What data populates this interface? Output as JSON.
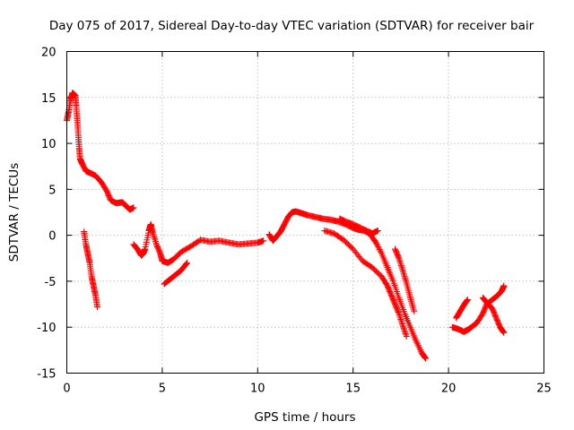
{
  "chart_data": {
    "type": "scatter",
    "title": "Day 075 of 2017, Sidereal Day-to-day VTEC variation (SDTVAR) for receiver bair",
    "xlabel": "GPS time / hours",
    "ylabel": "SDTVAR / TECUs",
    "xlim": [
      0,
      25
    ],
    "ylim": [
      -15,
      20
    ],
    "xticks": [
      0,
      5,
      10,
      15,
      20,
      25
    ],
    "yticks": [
      -15,
      -10,
      -5,
      0,
      5,
      10,
      15,
      20
    ],
    "xtick_labels": [
      "0",
      "5",
      "10",
      "15",
      "20",
      "25"
    ],
    "ytick_labels": [
      "-15",
      "-10",
      "-5",
      "0",
      "5",
      "10",
      "15",
      "20"
    ],
    "grid": true,
    "legend": "none",
    "marker": "+",
    "color": "#ff0000",
    "series": [
      {
        "x": [
          0.0,
          0.1,
          0.2,
          0.3,
          0.45,
          0.5,
          0.55,
          0.6,
          0.65,
          0.7,
          0.8,
          1.0,
          1.2,
          1.5,
          1.8,
          2.1,
          2.3,
          2.6,
          2.9,
          3.1,
          3.3,
          3.5
        ],
        "y": [
          12.5,
          13.5,
          14.8,
          15.5,
          15.2,
          14.0,
          12.5,
          11.0,
          9.5,
          8.3,
          7.8,
          7.0,
          6.8,
          6.5,
          5.8,
          4.8,
          3.8,
          3.5,
          3.6,
          3.2,
          2.8,
          3.0
        ]
      },
      {
        "x": [
          0.9,
          1.0,
          1.1,
          1.2,
          1.3,
          1.4,
          1.5,
          1.6
        ],
        "y": [
          0.4,
          -1.0,
          -2.0,
          -3.0,
          -4.5,
          -5.5,
          -6.5,
          -7.8
        ]
      },
      {
        "x": [
          3.5,
          3.7,
          3.9,
          4.0,
          4.1,
          4.3,
          4.4,
          4.5,
          4.7,
          4.9,
          5.0,
          5.3,
          5.6,
          6.0,
          6.5,
          7.0,
          7.5,
          8.0,
          8.5,
          9.0,
          9.5,
          10.0,
          10.3
        ],
        "y": [
          -1.0,
          -1.5,
          -2.2,
          -2.0,
          -1.5,
          0.5,
          1.2,
          0.3,
          -1.0,
          -2.0,
          -2.8,
          -3.0,
          -2.6,
          -1.8,
          -1.2,
          -0.5,
          -0.7,
          -0.6,
          -0.8,
          -1.0,
          -0.9,
          -0.8,
          -0.6
        ]
      },
      {
        "x": [
          5.1,
          5.4,
          5.7,
          6.0,
          6.3
        ],
        "y": [
          -5.3,
          -4.8,
          -4.3,
          -3.8,
          -3.0
        ]
      },
      {
        "x": [
          10.6,
          10.8,
          11.0,
          11.2,
          11.4,
          11.6,
          11.8,
          12.0,
          12.3,
          12.6,
          13.0,
          13.4,
          13.8,
          14.2,
          14.6,
          15.0,
          15.3,
          15.6,
          15.9,
          16.2,
          16.5,
          16.8,
          17.1,
          17.4,
          17.7,
          18.0,
          18.3,
          18.6,
          18.8
        ],
        "y": [
          0.1,
          -0.6,
          -0.1,
          0.4,
          1.2,
          2.0,
          2.5,
          2.6,
          2.4,
          2.2,
          2.0,
          1.8,
          1.7,
          1.5,
          1.2,
          0.8,
          0.6,
          0.5,
          0.1,
          -0.8,
          -2.0,
          -3.5,
          -5.0,
          -6.8,
          -8.5,
          -10.0,
          -11.5,
          -12.8,
          -13.4
        ]
      },
      {
        "x": [
          13.5,
          14.0,
          14.5,
          15.0,
          15.5,
          16.0,
          16.5,
          16.8,
          17.0,
          17.2,
          17.4,
          17.6,
          17.8
        ],
        "y": [
          0.5,
          0.2,
          -0.5,
          -1.5,
          -2.8,
          -3.5,
          -4.5,
          -5.5,
          -6.5,
          -7.5,
          -8.5,
          -9.8,
          -11.0
        ]
      },
      {
        "x": [
          14.3,
          14.6,
          15.0,
          15.4,
          15.8,
          16.0,
          16.3
        ],
        "y": [
          1.8,
          1.5,
          1.2,
          0.8,
          0.4,
          0.2,
          0.5
        ]
      },
      {
        "x": [
          17.2,
          17.4,
          17.6,
          17.8,
          18.0,
          18.2
        ],
        "y": [
          -1.5,
          -2.5,
          -3.8,
          -5.2,
          -6.8,
          -8.3
        ]
      },
      {
        "x": [
          20.2,
          20.5,
          20.8,
          21.0,
          21.2,
          21.5,
          21.8,
          22.0,
          22.3,
          22.6,
          22.8,
          22.9
        ],
        "y": [
          -10.0,
          -10.2,
          -10.5,
          -10.3,
          -10.0,
          -9.5,
          -8.5,
          -7.5,
          -7.0,
          -6.5,
          -6.0,
          -5.5
        ]
      },
      {
        "x": [
          20.4,
          20.6,
          20.8,
          21.0
        ],
        "y": [
          -9.0,
          -8.3,
          -7.6,
          -7.0
        ]
      },
      {
        "x": [
          21.8,
          22.0,
          22.3,
          22.5,
          22.7,
          22.9
        ],
        "y": [
          -6.8,
          -7.3,
          -8.0,
          -9.0,
          -10.0,
          -10.6
        ]
      }
    ]
  }
}
